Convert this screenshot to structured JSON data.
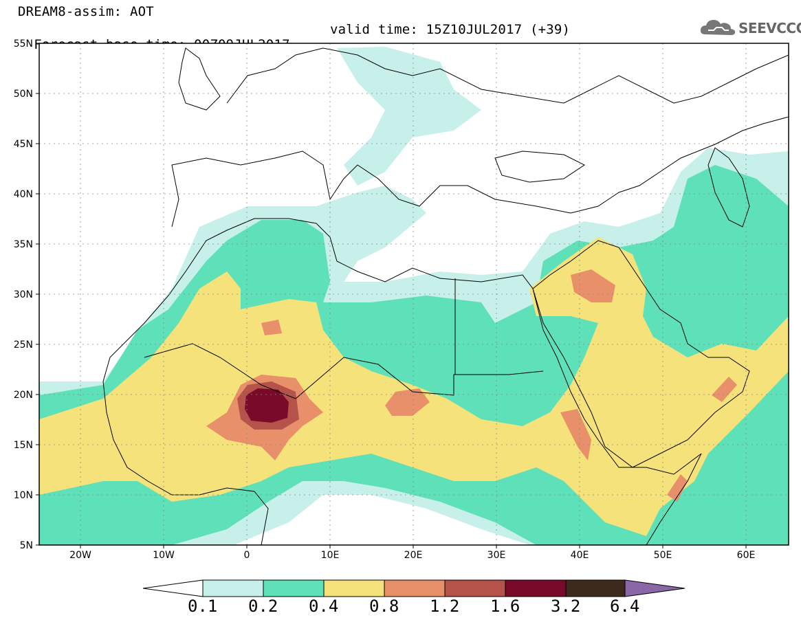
{
  "header": {
    "line1": "DREAM8-assim: AOT",
    "base_time": "Forecast base time: 00Z09JUL2017",
    "valid_time": "valid time: 15Z10JUL2017 (+39)"
  },
  "logo": {
    "text": "SEEVCCC",
    "icon": "cloud-icon"
  },
  "map": {
    "lon_range": [
      -25,
      65
    ],
    "lat_range": [
      5,
      55
    ],
    "lon_ticks": [
      {
        "lon": -20,
        "label": "20W"
      },
      {
        "lon": -10,
        "label": "10W"
      },
      {
        "lon": 0,
        "label": "0"
      },
      {
        "lon": 10,
        "label": "10E"
      },
      {
        "lon": 20,
        "label": "20E"
      },
      {
        "lon": 30,
        "label": "30E"
      },
      {
        "lon": 40,
        "label": "40E"
      },
      {
        "lon": 50,
        "label": "50E"
      },
      {
        "lon": 60,
        "label": "60E"
      }
    ],
    "lat_ticks": [
      {
        "lat": 55,
        "label": "55N"
      },
      {
        "lat": 50,
        "label": "50N"
      },
      {
        "lat": 45,
        "label": "45N"
      },
      {
        "lat": 40,
        "label": "40N"
      },
      {
        "lat": 35,
        "label": "35N"
      },
      {
        "lat": 30,
        "label": "30N"
      },
      {
        "lat": 25,
        "label": "25N"
      },
      {
        "lat": 20,
        "label": "20N"
      },
      {
        "lat": 15,
        "label": "15N"
      },
      {
        "lat": 10,
        "label": "10N"
      },
      {
        "lat": 5,
        "label": "5N"
      }
    ],
    "grid": "dotted"
  },
  "colorbar": {
    "labels": [
      "0.1",
      "0.2",
      "0.4",
      "0.8",
      "1.2",
      "1.6",
      "3.2",
      "6.4"
    ],
    "colors": [
      "#c8f0ea",
      "#5ee0b8",
      "#f6e27a",
      "#e8906a",
      "#b5524a",
      "#7a0a2a",
      "#3e2a1c"
    ],
    "under_color": "#ffffff",
    "over_color": "#8a68a8"
  }
}
